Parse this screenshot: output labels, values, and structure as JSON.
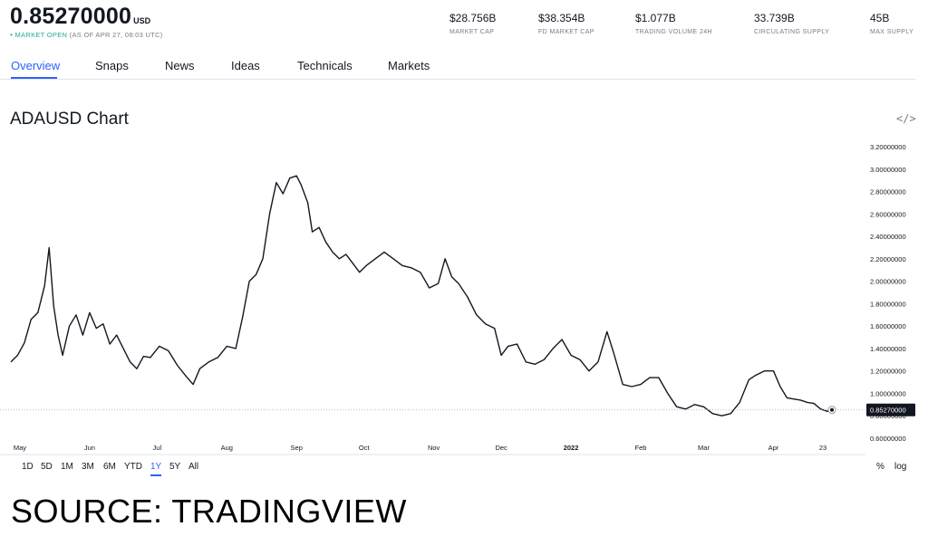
{
  "header": {
    "price": "0.85270000",
    "currency": "USD",
    "status_dot": "•",
    "status": "MARKET OPEN",
    "as_of": "(AS OF APR 27, 08:03 UTC)"
  },
  "stats": [
    {
      "value": "$28.756B",
      "label": "MARKET CAP"
    },
    {
      "value": "$38.354B",
      "label": "FD MARKET CAP"
    },
    {
      "value": "$1.077B",
      "label": "TRADING VOLUME 24H"
    },
    {
      "value": "33.739B",
      "label": "CIRCULATING SUPPLY"
    },
    {
      "value": "45B",
      "label": "MAX SUPPLY"
    }
  ],
  "tabs": [
    "Overview",
    "Snaps",
    "News",
    "Ideas",
    "Technicals",
    "Markets"
  ],
  "active_tab": "Overview",
  "chart_title": "ADAUSD Chart",
  "embed_icon": "code-embed-icon",
  "ranges": [
    "1D",
    "5D",
    "1M",
    "3M",
    "6M",
    "YTD",
    "1Y",
    "5Y",
    "All"
  ],
  "active_range": "1Y",
  "scale_buttons": {
    "percent": "%",
    "log": "log"
  },
  "source": "SOURCE: TRADINGVIEW",
  "colors": {
    "line": "#131722",
    "accent": "#2962ff",
    "market_open": "#26a69a",
    "price_tag": "#131722"
  },
  "chart_data": {
    "type": "line",
    "title": "ADAUSD Chart",
    "xlabel": "",
    "ylabel": "",
    "ylim": [
      0.6,
      3.2
    ],
    "x_range": [
      "2021-04-27",
      "2022-04-27"
    ],
    "grid": false,
    "last_value_label": "0.85270000",
    "y_ticks": [
      "3.20000000",
      "3.00000000",
      "2.80000000",
      "2.60000000",
      "2.40000000",
      "2.20000000",
      "2.00000000",
      "1.80000000",
      "1.60000000",
      "1.40000000",
      "1.20000000",
      "1.00000000",
      "0.80000000",
      "0.60000000"
    ],
    "x_ticks": [
      {
        "label": "May",
        "date": "2021-05-01"
      },
      {
        "label": "Jun",
        "date": "2021-06-01"
      },
      {
        "label": "Jul",
        "date": "2021-07-01"
      },
      {
        "label": "Aug",
        "date": "2021-08-01"
      },
      {
        "label": "Sep",
        "date": "2021-09-01"
      },
      {
        "label": "Oct",
        "date": "2021-10-01"
      },
      {
        "label": "Nov",
        "date": "2021-11-01"
      },
      {
        "label": "Dec",
        "date": "2021-12-01"
      },
      {
        "label": "2022",
        "date": "2022-01-01",
        "bold": true
      },
      {
        "label": "Feb",
        "date": "2022-02-01"
      },
      {
        "label": "Mar",
        "date": "2022-03-01"
      },
      {
        "label": "Apr",
        "date": "2022-04-01"
      },
      {
        "label": "23",
        "date": "2022-04-23"
      }
    ],
    "series": [
      {
        "x": [
          "2021-04-27",
          "2021-04-30",
          "2021-05-03",
          "2021-05-06",
          "2021-05-09",
          "2021-05-12",
          "2021-05-14",
          "2021-05-16",
          "2021-05-18",
          "2021-05-20",
          "2021-05-23",
          "2021-05-26",
          "2021-05-29",
          "2021-06-01",
          "2021-06-04",
          "2021-06-07",
          "2021-06-10",
          "2021-06-13",
          "2021-06-16",
          "2021-06-19",
          "2021-06-22",
          "2021-06-25",
          "2021-06-28",
          "2021-07-02",
          "2021-07-06",
          "2021-07-10",
          "2021-07-14",
          "2021-07-17",
          "2021-07-20",
          "2021-07-24",
          "2021-07-28",
          "2021-08-01",
          "2021-08-05",
          "2021-08-08",
          "2021-08-11",
          "2021-08-14",
          "2021-08-17",
          "2021-08-20",
          "2021-08-23",
          "2021-08-26",
          "2021-08-29",
          "2021-09-01",
          "2021-09-03",
          "2021-09-06",
          "2021-09-08",
          "2021-09-11",
          "2021-09-14",
          "2021-09-17",
          "2021-09-20",
          "2021-09-23",
          "2021-09-26",
          "2021-09-29",
          "2021-10-02",
          "2021-10-06",
          "2021-10-10",
          "2021-10-14",
          "2021-10-18",
          "2021-10-22",
          "2021-10-26",
          "2021-10-30",
          "2021-11-03",
          "2021-11-06",
          "2021-11-09",
          "2021-11-12",
          "2021-11-16",
          "2021-11-20",
          "2021-11-24",
          "2021-11-28",
          "2021-12-01",
          "2021-12-04",
          "2021-12-08",
          "2021-12-12",
          "2021-12-16",
          "2021-12-20",
          "2021-12-24",
          "2021-12-28",
          "2022-01-01",
          "2022-01-05",
          "2022-01-09",
          "2022-01-13",
          "2022-01-17",
          "2022-01-20",
          "2022-01-24",
          "2022-01-28",
          "2022-02-01",
          "2022-02-05",
          "2022-02-09",
          "2022-02-13",
          "2022-02-17",
          "2022-02-21",
          "2022-02-25",
          "2022-03-01",
          "2022-03-05",
          "2022-03-09",
          "2022-03-13",
          "2022-03-17",
          "2022-03-21",
          "2022-03-24",
          "2022-03-28",
          "2022-04-01",
          "2022-04-04",
          "2022-04-07",
          "2022-04-10",
          "2022-04-13",
          "2022-04-16",
          "2022-04-19",
          "2022-04-22",
          "2022-04-25",
          "2022-04-27"
        ],
        "values": [
          1.28,
          1.34,
          1.45,
          1.66,
          1.72,
          1.96,
          2.3,
          1.78,
          1.52,
          1.34,
          1.6,
          1.7,
          1.52,
          1.72,
          1.58,
          1.62,
          1.44,
          1.52,
          1.4,
          1.28,
          1.22,
          1.33,
          1.32,
          1.42,
          1.38,
          1.25,
          1.15,
          1.08,
          1.22,
          1.28,
          1.32,
          1.42,
          1.4,
          1.68,
          2.0,
          2.06,
          2.2,
          2.6,
          2.88,
          2.78,
          2.92,
          2.94,
          2.86,
          2.7,
          2.44,
          2.48,
          2.35,
          2.26,
          2.2,
          2.24,
          2.16,
          2.08,
          2.14,
          2.2,
          2.26,
          2.2,
          2.14,
          2.12,
          2.08,
          1.94,
          1.98,
          2.2,
          2.04,
          1.98,
          1.86,
          1.7,
          1.62,
          1.58,
          1.34,
          1.42,
          1.44,
          1.28,
          1.26,
          1.3,
          1.4,
          1.48,
          1.34,
          1.3,
          1.2,
          1.28,
          1.55,
          1.36,
          1.08,
          1.06,
          1.08,
          1.14,
          1.14,
          1.0,
          0.88,
          0.86,
          0.9,
          0.88,
          0.82,
          0.8,
          0.82,
          0.92,
          1.12,
          1.16,
          1.2,
          1.2,
          1.06,
          0.96,
          0.95,
          0.94,
          0.92,
          0.91,
          0.86,
          0.84,
          0.8527
        ]
      }
    ]
  }
}
